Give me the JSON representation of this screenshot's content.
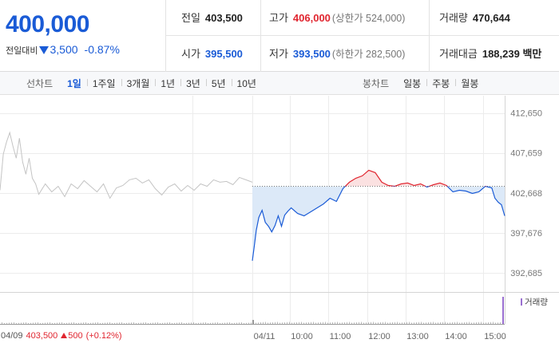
{
  "quote": {
    "price": "400,000",
    "change_label": "전일대비",
    "change": "3,500",
    "change_pct": "-0.87%",
    "direction": "down"
  },
  "stats": {
    "prev_close": {
      "label": "전일",
      "value": "403,500"
    },
    "open": {
      "label": "시가",
      "value": "395,500"
    },
    "high": {
      "label": "고가",
      "value": "406,000",
      "sub": "(상한가 524,000)"
    },
    "low": {
      "label": "저가",
      "value": "393,500",
      "sub": "(하한가 282,500)"
    },
    "volume": {
      "label": "거래량",
      "value": "470,644"
    },
    "amount": {
      "label": "거래대금",
      "value": "188,239 백만"
    }
  },
  "period_bar": {
    "line_label": "선차트",
    "line_periods": [
      "1일",
      "1주일",
      "3개월",
      "1년",
      "3년",
      "5년",
      "10년"
    ],
    "line_active": "1일",
    "candle_label": "봉차트",
    "candle_periods": [
      "일봉",
      "주봉",
      "월봉"
    ]
  },
  "chart_data": {
    "type": "line",
    "ylim": [
      390500,
      414800
    ],
    "y_ticks": [
      "412,650",
      "407,659",
      "402,668",
      "397,676",
      "392,685"
    ],
    "baseline": 403500,
    "x_ticks": [
      "04/11",
      "10:00",
      "11:00",
      "12:00",
      "13:00",
      "14:00",
      "15:00"
    ],
    "prev_day": {
      "date": "04/09",
      "close": "403,500",
      "change": "500",
      "change_pct": "(+0.12%)"
    },
    "volume_legend": "거래량",
    "prev_series_minutes": [
      0,
      5,
      10,
      15,
      20,
      25,
      30,
      35,
      40,
      45,
      50,
      55,
      60,
      70,
      80,
      90,
      100,
      110,
      120,
      130,
      140,
      150,
      160,
      170,
      180,
      190,
      200,
      210,
      220,
      230,
      240,
      250,
      260,
      270,
      280,
      290,
      300,
      310,
      320,
      330,
      340,
      350,
      360,
      370,
      380,
      390
    ],
    "prev_series_values": [
      403000,
      407500,
      409000,
      410200,
      408500,
      407000,
      409500,
      406500,
      405000,
      407000,
      404500,
      403800,
      402500,
      403800,
      402800,
      403500,
      402200,
      403800,
      403200,
      404200,
      403500,
      402800,
      403800,
      402000,
      403300,
      403600,
      404300,
      404500,
      403900,
      404300,
      403200,
      402400,
      403400,
      403800,
      402900,
      403600,
      403000,
      403800,
      403500,
      404300,
      404000,
      404100,
      403700,
      404600,
      404300,
      404000
    ],
    "today_series_minutes": [
      0,
      3,
      6,
      10,
      15,
      20,
      25,
      30,
      35,
      40,
      45,
      50,
      55,
      60,
      70,
      80,
      90,
      100,
      110,
      120,
      130,
      140,
      150,
      160,
      170,
      180,
      190,
      200,
      210,
      220,
      230,
      240,
      250,
      260,
      270,
      280,
      290,
      300,
      310,
      320,
      330,
      340,
      350,
      360,
      370,
      375,
      380,
      385,
      390
    ],
    "today_series_values": [
      394200,
      396000,
      398000,
      399600,
      400500,
      399000,
      398500,
      397800,
      398600,
      399800,
      398500,
      399900,
      400400,
      400800,
      400100,
      399800,
      400300,
      400800,
      401300,
      402000,
      401600,
      403200,
      404000,
      404500,
      404800,
      405500,
      405200,
      404000,
      403600,
      403500,
      403800,
      403900,
      403600,
      403800,
      403400,
      403700,
      403900,
      403600,
      402800,
      403000,
      402900,
      402600,
      402800,
      403500,
      403300,
      402000,
      401500,
      401200,
      399800
    ],
    "volume_spike": "15:00"
  },
  "colors": {
    "up": "#e0252f",
    "down": "#1a5bd6",
    "prev_line": "#c4c4c4",
    "fill_down": "#dce9f8",
    "fill_up": "#fbe1e1",
    "volume": "#9a6fd1"
  }
}
